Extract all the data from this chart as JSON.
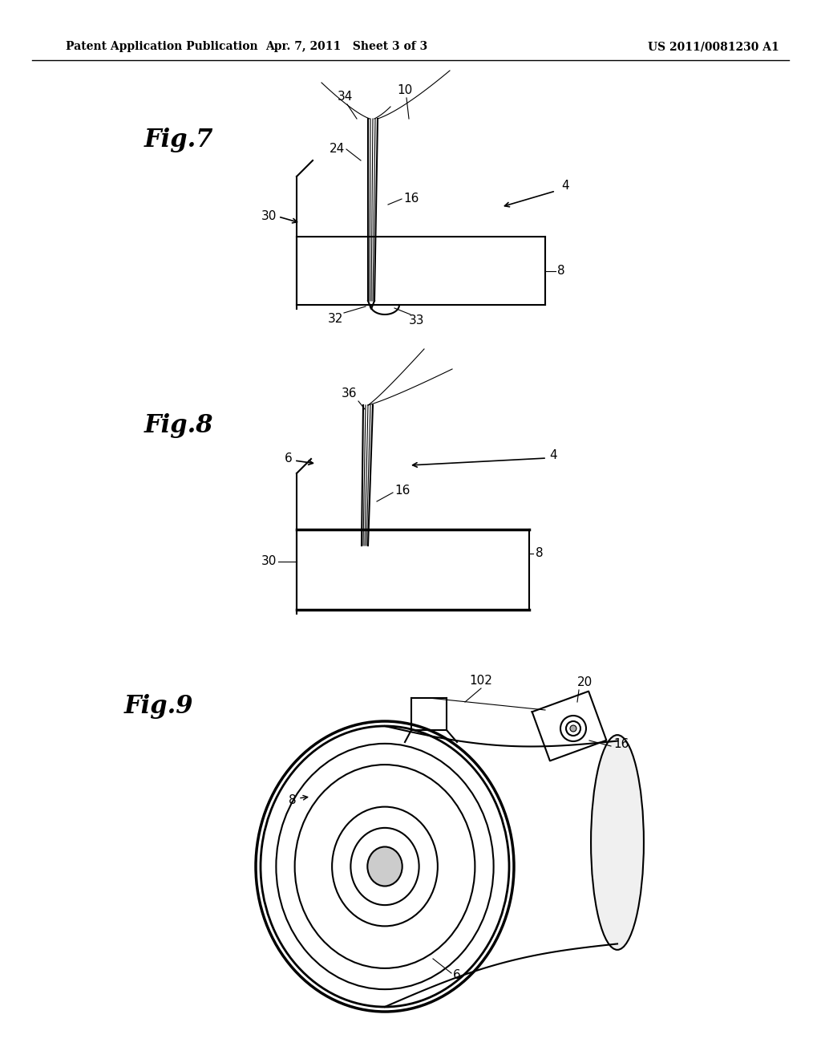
{
  "bg_color": "#ffffff",
  "header_left": "Patent Application Publication",
  "header_center": "Apr. 7, 2011   Sheet 3 of 3",
  "header_right": "US 2011/0081230 A1",
  "fig7_label": "Fig.7",
  "fig8_label": "Fig.8",
  "fig9_label": "Fig.9",
  "text_color": "#000000",
  "line_color": "#000000",
  "line_width": 1.5,
  "thin_line": 0.8
}
